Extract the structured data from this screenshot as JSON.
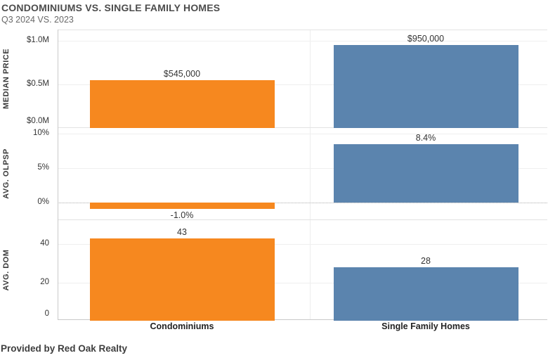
{
  "header": {
    "title": "CONDOMINIUMS VS. SINGLE FAMILY HOMES",
    "subtitle": "Q3 2024 VS. 2023"
  },
  "footer": {
    "credit": "Provided by Red Oak Realty"
  },
  "colors": {
    "condominiums": "#F6881F",
    "single_family_homes": "#5B84AE",
    "grid": "#efefef",
    "axis": "#c9c9c9"
  },
  "chart_data": [
    {
      "type": "bar",
      "metric": "MEDIAN PRICE",
      "categories": [
        "Condominiums",
        "Single Family Homes"
      ],
      "values": [
        545000,
        950000
      ],
      "value_labels": [
        "$545,000",
        "$950,000"
      ],
      "ticks": [
        {
          "value": 1000000,
          "label": "$1.0M"
        },
        {
          "value": 500000,
          "label": "$0.5M"
        },
        {
          "value": 0,
          "label": "$0.0M"
        }
      ],
      "ylim": [
        0,
        1120000
      ],
      "zero_line": "none"
    },
    {
      "type": "bar",
      "metric": "AVG. OLPSP",
      "categories": [
        "Condominiums",
        "Single Family Homes"
      ],
      "values": [
        -1.0,
        8.4
      ],
      "value_labels": [
        "-1.0%",
        "8.4%"
      ],
      "ticks": [
        {
          "value": 10,
          "label": "10%"
        },
        {
          "value": 5,
          "label": "5%"
        },
        {
          "value": 0,
          "label": "0%"
        }
      ],
      "ylim": [
        -2.6,
        10.8
      ],
      "zero_line": "dotted"
    },
    {
      "type": "bar",
      "metric": "AVG. DOM",
      "categories": [
        "Condominiums",
        "Single Family Homes"
      ],
      "values": [
        43,
        28
      ],
      "value_labels": [
        "43",
        "28"
      ],
      "ticks": [
        {
          "value": 40,
          "label": "40"
        },
        {
          "value": 20,
          "label": "20"
        },
        {
          "value": 0,
          "label": "0"
        }
      ],
      "ylim": [
        0,
        52.5
      ],
      "zero_line": "none"
    }
  ],
  "x_categories": [
    "Condominiums",
    "Single Family Homes"
  ]
}
